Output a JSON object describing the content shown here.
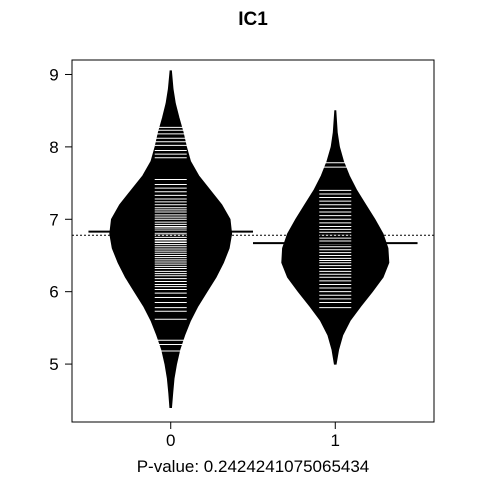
{
  "chart_data": {
    "type": "beanplot",
    "title": "IC1",
    "xlabel": "P-value: 0.2424241075065434",
    "ylabel": "",
    "ylim": [
      4.2,
      9.2
    ],
    "xlim": [
      -0.6,
      1.6
    ],
    "yticks": [
      5,
      6,
      7,
      8,
      9
    ],
    "categories": [
      "0",
      "1"
    ],
    "grid": false,
    "legend": "none",
    "overall_mean": 6.78,
    "groups": [
      {
        "category": "0",
        "mean": 6.83,
        "density": [
          [
            4.4,
            0.005
          ],
          [
            4.6,
            0.012
          ],
          [
            4.8,
            0.02
          ],
          [
            5.0,
            0.035
          ],
          [
            5.2,
            0.055
          ],
          [
            5.4,
            0.085
          ],
          [
            5.6,
            0.12
          ],
          [
            5.8,
            0.165
          ],
          [
            6.0,
            0.22
          ],
          [
            6.2,
            0.275
          ],
          [
            6.4,
            0.32
          ],
          [
            6.6,
            0.355
          ],
          [
            6.8,
            0.37
          ],
          [
            7.0,
            0.36
          ],
          [
            7.2,
            0.31
          ],
          [
            7.4,
            0.24
          ],
          [
            7.6,
            0.17
          ],
          [
            7.8,
            0.12
          ],
          [
            8.0,
            0.095
          ],
          [
            8.2,
            0.075
          ],
          [
            8.4,
            0.05
          ],
          [
            8.6,
            0.028
          ],
          [
            8.8,
            0.014
          ],
          [
            9.05,
            0.004
          ]
        ],
        "points": [
          5.18,
          5.27,
          5.33,
          5.62,
          5.73,
          5.78,
          5.85,
          5.92,
          5.98,
          6.03,
          6.07,
          6.1,
          6.14,
          6.18,
          6.22,
          6.25,
          6.28,
          6.32,
          6.35,
          6.38,
          6.41,
          6.44,
          6.47,
          6.5,
          6.53,
          6.56,
          6.59,
          6.62,
          6.65,
          6.68,
          6.7,
          6.72,
          6.75,
          6.78,
          6.8,
          6.82,
          6.85,
          6.88,
          6.9,
          6.93,
          6.96,
          7.0,
          7.03,
          7.06,
          7.1,
          7.13,
          7.16,
          7.2,
          7.24,
          7.28,
          7.33,
          7.38,
          7.43,
          7.48,
          7.55,
          7.85,
          7.9,
          7.95,
          8.02,
          8.07,
          8.12,
          8.18,
          8.23,
          8.27
        ]
      },
      {
        "category": "1",
        "mean": 6.67,
        "density": [
          [
            5.0,
            0.005
          ],
          [
            5.2,
            0.02
          ],
          [
            5.4,
            0.045
          ],
          [
            5.6,
            0.09
          ],
          [
            5.8,
            0.155
          ],
          [
            6.0,
            0.225
          ],
          [
            6.2,
            0.29
          ],
          [
            6.4,
            0.325
          ],
          [
            6.6,
            0.32
          ],
          [
            6.8,
            0.29
          ],
          [
            7.0,
            0.24
          ],
          [
            7.2,
            0.185
          ],
          [
            7.4,
            0.13
          ],
          [
            7.6,
            0.085
          ],
          [
            7.8,
            0.05
          ],
          [
            8.0,
            0.025
          ],
          [
            8.2,
            0.012
          ],
          [
            8.5,
            0.003
          ]
        ],
        "points": [
          5.78,
          5.85,
          5.9,
          5.95,
          6.0,
          6.05,
          6.1,
          6.15,
          6.2,
          6.24,
          6.28,
          6.32,
          6.36,
          6.4,
          6.43,
          6.46,
          6.5,
          6.54,
          6.58,
          6.62,
          6.66,
          6.7,
          6.74,
          6.78,
          6.82,
          6.86,
          6.9,
          6.95,
          7.0,
          7.05,
          7.1,
          7.15,
          7.2,
          7.25,
          7.3,
          7.35,
          7.4,
          7.72,
          7.78
        ]
      }
    ]
  }
}
